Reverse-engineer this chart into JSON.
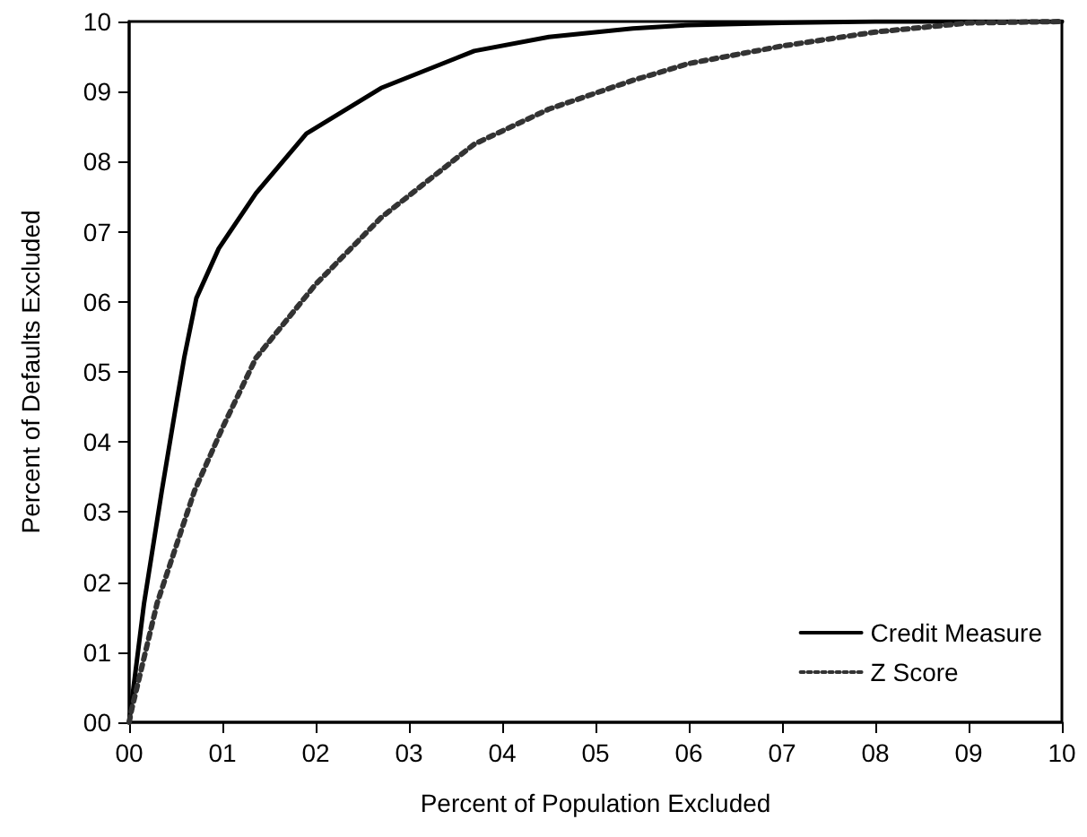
{
  "chart_data": {
    "type": "line",
    "xlabel": "Percent of Population Excluded",
    "ylabel": "Percent of Defaults Excluded",
    "xlim": [
      0,
      10
    ],
    "ylim": [
      0,
      10
    ],
    "xticks": [
      {
        "value": 0,
        "label": "00"
      },
      {
        "value": 1,
        "label": "01"
      },
      {
        "value": 2,
        "label": "02"
      },
      {
        "value": 3,
        "label": "03"
      },
      {
        "value": 4,
        "label": "04"
      },
      {
        "value": 5,
        "label": "05"
      },
      {
        "value": 6,
        "label": "06"
      },
      {
        "value": 7,
        "label": "07"
      },
      {
        "value": 8,
        "label": "08"
      },
      {
        "value": 9,
        "label": "09"
      },
      10
    ],
    "yticks": [
      {
        "value": 0,
        "label": "00"
      },
      {
        "value": 1,
        "label": "01"
      },
      {
        "value": 2,
        "label": "02"
      },
      {
        "value": 3,
        "label": "03"
      },
      {
        "value": 4,
        "label": "04"
      },
      {
        "value": 5,
        "label": "05"
      },
      {
        "value": 6,
        "label": "06"
      },
      {
        "value": 7,
        "label": "07"
      },
      {
        "value": 8,
        "label": "08"
      },
      {
        "value": 9,
        "label": "09"
      },
      10
    ],
    "grid": false,
    "legend": "bottom right",
    "marker": "none",
    "series": [
      {
        "name": "Credit Measure",
        "color": "#000000",
        "line_style": "solid",
        "x": [
          0,
          0.16,
          0.35,
          0.5,
          0.59,
          0.72,
          0.96,
          1.36,
          1.9,
          2.7,
          3.7,
          4.5,
          5.4,
          6,
          7,
          8,
          9,
          10
        ],
        "values": [
          0,
          1.7,
          3.3,
          4.5,
          5.2,
          6.05,
          6.76,
          7.55,
          8.4,
          9.05,
          9.58,
          9.78,
          9.9,
          9.95,
          9.98,
          10,
          10,
          10
        ]
      },
      {
        "name": "Z Score",
        "color": "#333333",
        "line_style": "dotted",
        "x": [
          0,
          0.03,
          0.3,
          0.7,
          1,
          1.36,
          2,
          2.7,
          3.7,
          4.5,
          5.4,
          6,
          7,
          8,
          9,
          10
        ],
        "values": [
          0,
          0.2,
          1.7,
          3.3,
          4.2,
          5.2,
          6.25,
          7.2,
          8.25,
          8.75,
          9.16,
          9.4,
          9.65,
          9.85,
          9.98,
          10
        ]
      }
    ]
  }
}
